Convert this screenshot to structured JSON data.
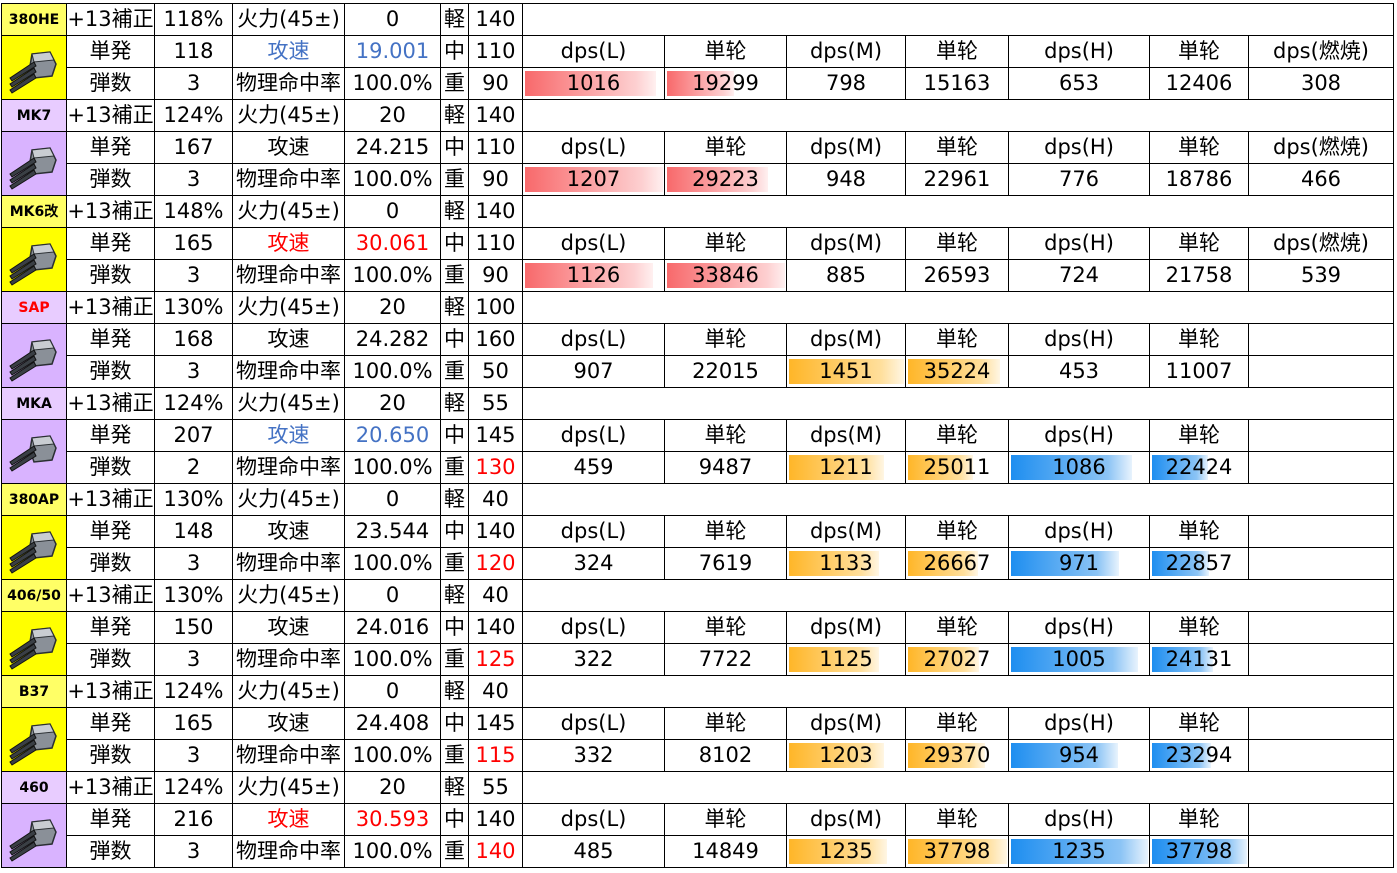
{
  "labels": {
    "bonus": "+13補正",
    "firepower": "火力(45±)",
    "single": "単発",
    "speed": "攻速",
    "count": "弾数",
    "accuracy": "物理命中率",
    "light": "軽",
    "medium": "中",
    "heavy": "重",
    "h_dpsL": "dps(L)",
    "h_dpsM": "dps(M)",
    "h_dpsH": "dps(H)",
    "h_round": "単轮",
    "h_burn": "dps(燃焼)"
  },
  "colors": {
    "red_bar": "#f8696b",
    "orange_bar": "#ffb628",
    "blue_bar": "#1e8ef0",
    "speed_blue_text": "#4472c4",
    "red_text": "#ff0000"
  },
  "guns": [
    {
      "name": "380HE",
      "name_color": "#000000",
      "label_bg": "#ffff66",
      "img_bg": "#ffff00",
      "icon": "triple-turret-icon",
      "bonus": "118%",
      "fp": "0",
      "light": "140",
      "single": "118",
      "speed": "19.001",
      "speed_style": "blue",
      "count": "3",
      "accuracy": "100.0%",
      "medium": "110",
      "heavy": "90",
      "heavy_red": false,
      "has_burn": true,
      "values": {
        "dpsL": "1016",
        "rL": "19299",
        "dpsM": "798",
        "rM": "15163",
        "dpsH": "653",
        "rH": "12406",
        "burn": "308"
      },
      "bars": {
        "dpsL": 0.95,
        "rL": 0.57
      }
    },
    {
      "name": "MK7",
      "name_color": "#000000",
      "label_bg": "#e8ccff",
      "img_bg": "#d9b3ff",
      "icon": "triple-turret-icon",
      "bonus": "124%",
      "fp": "20",
      "light": "140",
      "single": "167",
      "speed": "24.215",
      "speed_style": "normal",
      "count": "3",
      "accuracy": "100.0%",
      "medium": "110",
      "heavy": "90",
      "heavy_red": false,
      "has_burn": true,
      "values": {
        "dpsL": "1207",
        "rL": "29223",
        "dpsM": "948",
        "rM": "22961",
        "dpsH": "776",
        "rH": "18786",
        "burn": "466"
      },
      "bars": {
        "dpsL": 1.0,
        "rL": 0.86
      }
    },
    {
      "name": "MK6改",
      "name_color": "#000000",
      "label_bg": "#ffff66",
      "img_bg": "#ffff00",
      "icon": "triple-turret-icon",
      "bonus": "148%",
      "fp": "0",
      "light": "140",
      "single": "165",
      "speed": "30.061",
      "speed_style": "red",
      "count": "3",
      "accuracy": "100.0%",
      "medium": "110",
      "heavy": "90",
      "heavy_red": false,
      "has_burn": true,
      "values": {
        "dpsL": "1126",
        "rL": "33846",
        "dpsM": "885",
        "rM": "26593",
        "dpsH": "724",
        "rH": "21758",
        "burn": "539"
      },
      "bars": {
        "dpsL": 0.93,
        "rL": 1.0
      }
    },
    {
      "name": "SAP",
      "name_color": "#ff0000",
      "label_bg": "#e8ccff",
      "img_bg": "#d9b3ff",
      "icon": "triple-turret-icon",
      "bonus": "130%",
      "fp": "20",
      "light": "100",
      "single": "168",
      "speed": "24.282",
      "speed_style": "normal",
      "count": "3",
      "accuracy": "100.0%",
      "medium": "160",
      "heavy": "50",
      "heavy_red": false,
      "has_burn": false,
      "values": {
        "dpsL": "907",
        "rL": "22015",
        "dpsM": "1451",
        "rM": "35224",
        "dpsH": "453",
        "rH": "11007",
        "burn": ""
      },
      "bars": {
        "dpsM": 1.0,
        "rM": 0.93
      }
    },
    {
      "name": "MKA",
      "name_color": "#000000",
      "label_bg": "#e8ccff",
      "img_bg": "#d9b3ff",
      "icon": "twin-turret-icon",
      "bonus": "124%",
      "fp": "20",
      "light": "55",
      "single": "207",
      "speed": "20.650",
      "speed_style": "blue",
      "count": "2",
      "accuracy": "100.0%",
      "medium": "145",
      "heavy": "130",
      "heavy_red": true,
      "has_burn": false,
      "values": {
        "dpsL": "459",
        "rL": "9487",
        "dpsM": "1211",
        "rM": "25011",
        "dpsH": "1086",
        "rH": "22424",
        "burn": ""
      },
      "bars": {
        "dpsM": 0.83,
        "rM": 0.66,
        "dpsH": 0.88,
        "rH": 0.59
      }
    },
    {
      "name": "380AP",
      "name_color": "#000000",
      "label_bg": "#ffff66",
      "img_bg": "#ffff00",
      "icon": "triple-turret-icon",
      "bonus": "130%",
      "fp": "0",
      "light": "40",
      "single": "148",
      "speed": "23.544",
      "speed_style": "normal",
      "count": "3",
      "accuracy": "100.0%",
      "medium": "140",
      "heavy": "120",
      "heavy_red": true,
      "has_burn": false,
      "values": {
        "dpsL": "324",
        "rL": "7619",
        "dpsM": "1133",
        "rM": "26667",
        "dpsH": "971",
        "rH": "22857",
        "burn": ""
      },
      "bars": {
        "dpsM": 0.78,
        "rM": 0.71,
        "dpsH": 0.79,
        "rH": 0.6
      }
    },
    {
      "name": "406/50",
      "name_color": "#000000",
      "label_bg": "#ffff66",
      "img_bg": "#ffff00",
      "icon": "triple-turret-icon",
      "bonus": "130%",
      "fp": "0",
      "light": "40",
      "single": "150",
      "speed": "24.016",
      "speed_style": "normal",
      "count": "3",
      "accuracy": "100.0%",
      "medium": "140",
      "heavy": "125",
      "heavy_red": true,
      "has_burn": false,
      "values": {
        "dpsL": "322",
        "rL": "7722",
        "dpsM": "1125",
        "rM": "27027",
        "dpsH": "1005",
        "rH": "24131",
        "burn": ""
      },
      "bars": {
        "dpsM": 0.78,
        "rM": 0.72,
        "dpsH": 0.93,
        "rH": 0.64
      }
    },
    {
      "name": "B37",
      "name_color": "#000000",
      "label_bg": "#ffff66",
      "img_bg": "#ffff00",
      "icon": "triple-turret-icon",
      "bonus": "124%",
      "fp": "0",
      "light": "40",
      "single": "165",
      "speed": "24.408",
      "speed_style": "normal",
      "count": "3",
      "accuracy": "100.0%",
      "medium": "145",
      "heavy": "115",
      "heavy_red": true,
      "has_burn": false,
      "values": {
        "dpsL": "332",
        "rL": "8102",
        "dpsM": "1203",
        "rM": "29370",
        "dpsH": "954",
        "rH": "23294",
        "burn": ""
      },
      "bars": {
        "dpsM": 0.83,
        "rM": 0.78,
        "dpsH": 0.78,
        "rH": 0.62
      }
    },
    {
      "name": "460",
      "name_color": "#000000",
      "label_bg": "#e8ccff",
      "img_bg": "#d9b3ff",
      "icon": "triple-turret-icon",
      "bonus": "124%",
      "fp": "20",
      "light": "55",
      "single": "216",
      "speed": "30.593",
      "speed_style": "red",
      "count": "3",
      "accuracy": "100.0%",
      "medium": "140",
      "heavy": "140",
      "heavy_red": true,
      "has_burn": false,
      "values": {
        "dpsL": "485",
        "rL": "14849",
        "dpsM": "1235",
        "rM": "37798",
        "dpsH": "1235",
        "rH": "37798",
        "burn": ""
      },
      "bars": {
        "dpsM": 0.85,
        "rM": 1.0,
        "dpsH": 1.0,
        "rH": 1.0
      }
    }
  ]
}
